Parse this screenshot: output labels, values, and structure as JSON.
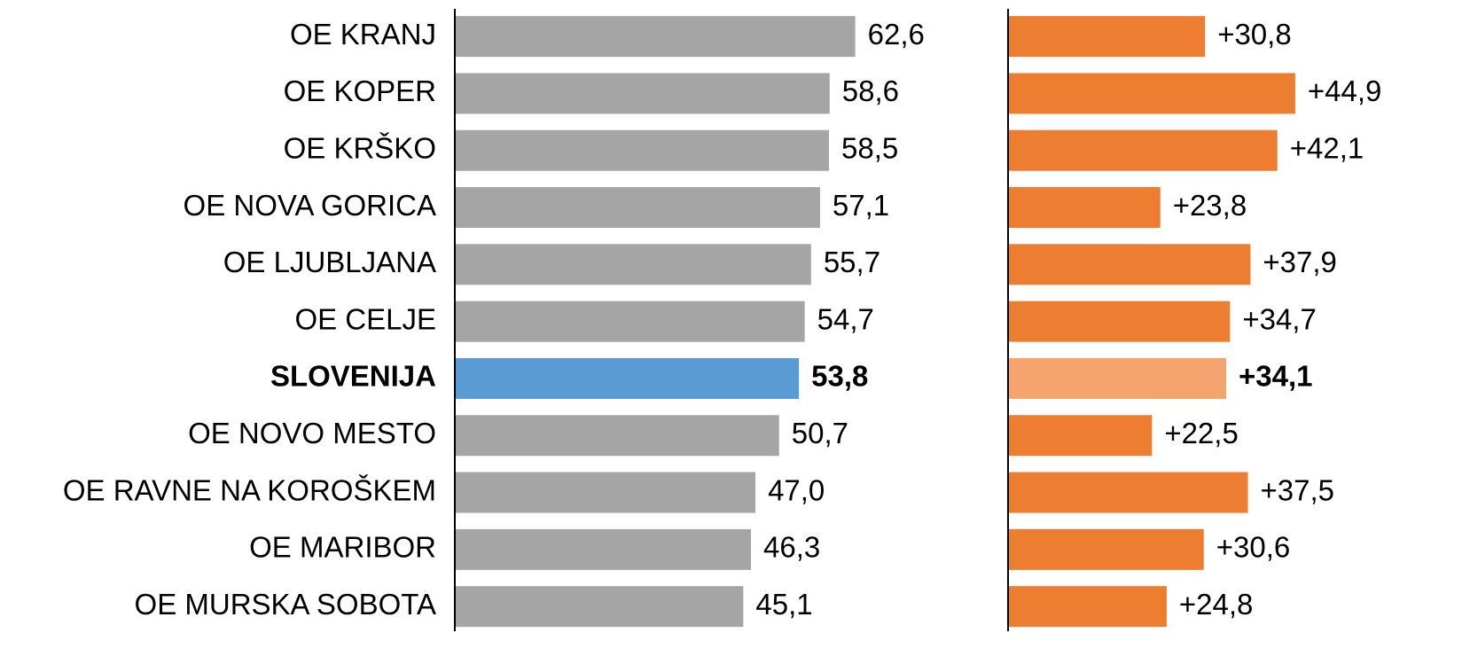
{
  "chart_data": {
    "type": "bar",
    "orientation": "horizontal",
    "categories": [
      "OE KRANJ",
      "OE KOPER",
      "OE KRŠKO",
      "OE NOVA GORICA",
      "OE LJUBLJANA",
      "OE CELJE",
      "SLOVENIJA",
      "OE NOVO MESTO",
      "OE RAVNE NA KOROŠKEM",
      "OE MARIBOR",
      "OE MURSKA SOBOTA"
    ],
    "highlight_index": 6,
    "series": [
      {
        "color": "#a5a5a5",
        "highlight_color": "#5b9bd5",
        "xlim": [
          0,
          70
        ],
        "values": [
          62.6,
          58.6,
          58.5,
          57.1,
          55.7,
          54.7,
          53.8,
          50.7,
          47.0,
          46.3,
          45.1
        ],
        "value_labels": [
          "62,6",
          "58,6",
          "58,5",
          "57,1",
          "55,7",
          "54,7",
          "53,8",
          "50,7",
          "47,0",
          "46,3",
          "45,1"
        ]
      },
      {
        "color": "#ed7d31",
        "highlight_color": "#f4a46c",
        "xlim": [
          0,
          70
        ],
        "values": [
          30.8,
          44.9,
          42.1,
          23.8,
          37.9,
          34.7,
          34.1,
          22.5,
          37.5,
          30.6,
          24.8
        ],
        "value_labels": [
          "+30,8",
          "+44,9",
          "+42,1",
          "+23,8",
          "+37,9",
          "+34,7",
          "+34,1",
          "+22,5",
          "+37,5",
          "+30,6",
          "+24,8"
        ]
      }
    ]
  }
}
